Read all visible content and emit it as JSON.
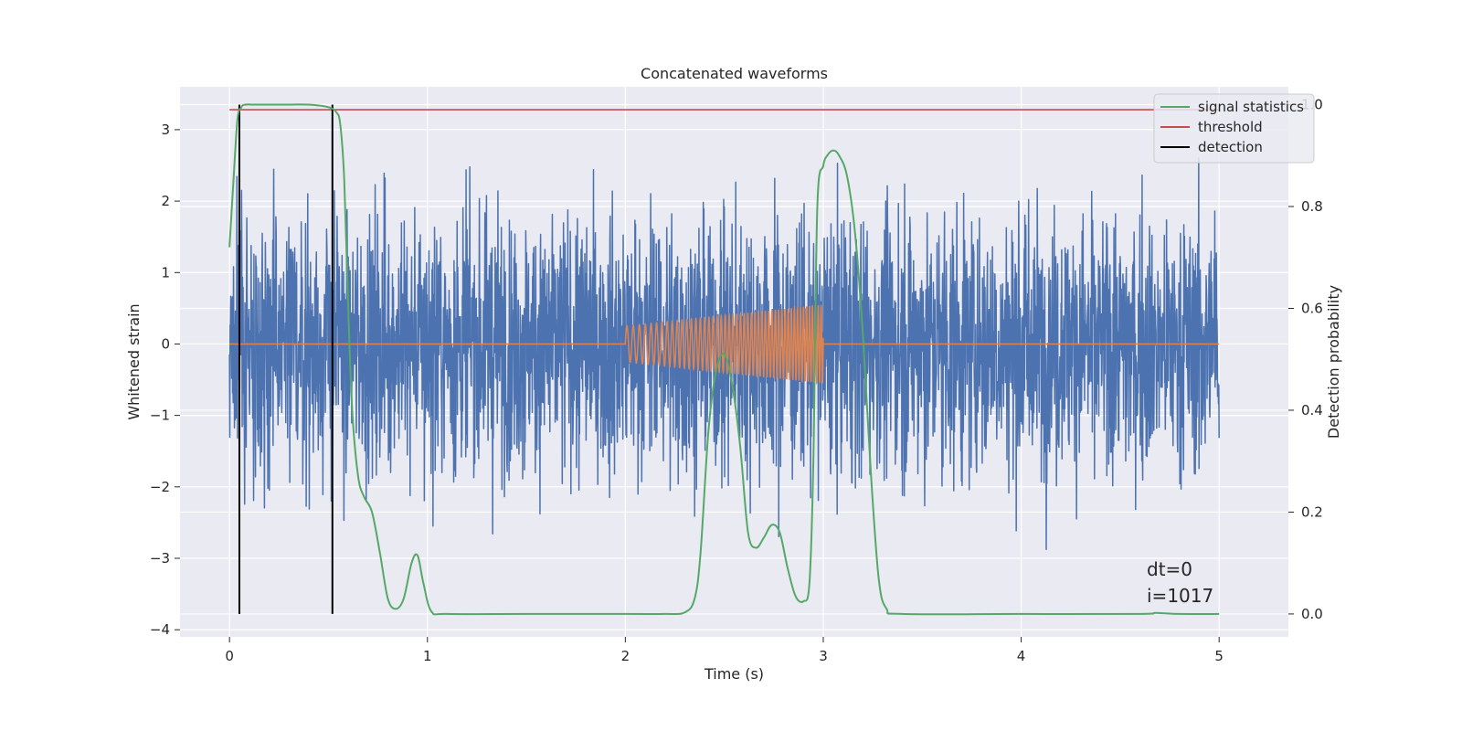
{
  "chart_data": {
    "type": "line",
    "title": "Concatenated waveforms",
    "xlabel": "Time (s)",
    "ylabel": "Whitened strain",
    "y2label": "Detection probability",
    "xlim": [
      -0.25,
      5.35
    ],
    "ylim": [
      -4.1,
      3.6
    ],
    "y2lim": [
      -0.045,
      1.035
    ],
    "x_ticks": [
      "0",
      "1",
      "2",
      "3",
      "4",
      "5"
    ],
    "x_tick_values": [
      0,
      1,
      2,
      3,
      4,
      5
    ],
    "y_ticks": [
      "3",
      "2",
      "1",
      "0",
      "−1",
      "−2",
      "−3",
      "−4"
    ],
    "y_tick_values": [
      3,
      2,
      1,
      0,
      -1,
      -2,
      -3,
      -4
    ],
    "y2_ticks": [
      "1.0",
      "0.8",
      "0.6",
      "0.4",
      "0.2",
      "0.0"
    ],
    "y2_tick_values": [
      1.0,
      0.8,
      0.6,
      0.4,
      0.2,
      0.0
    ],
    "grid": true,
    "legend_position": "top-right",
    "colors": {
      "background": "#eaeaf2",
      "grid": "#ffffff",
      "noise": "#4c72b0",
      "injection": "#dd8452",
      "statistic": "#55a868",
      "threshold": "#c44e52",
      "detection": "#000000"
    },
    "legend": [
      "signal statistics",
      "threshold",
      "detection"
    ],
    "noise_series": {
      "x_range": [
        0,
        5
      ],
      "approx_amplitude_sd": 0.9,
      "approx_extrema": [
        -3.7,
        3.4
      ]
    },
    "injection_series": {
      "x_range": [
        2.0,
        3.0
      ],
      "start_amplitude": 0.25,
      "end_amplitude": 0.55,
      "start_frequency_hz": 30,
      "end_frequency_hz": 70,
      "zero_elsewhere": true
    },
    "signal_statistics": {
      "x": [
        0,
        0.02,
        0.04,
        0.06,
        0.08,
        0.12,
        0.2,
        0.3,
        0.4,
        0.5,
        0.54,
        0.56,
        0.58,
        0.6,
        0.62,
        0.65,
        0.68,
        0.72,
        0.76,
        0.8,
        0.84,
        0.88,
        0.92,
        0.95,
        0.98,
        1.02,
        1.1,
        1.5,
        2.0,
        2.2,
        2.3,
        2.35,
        2.38,
        2.42,
        2.46,
        2.5,
        2.54,
        2.58,
        2.62,
        2.66,
        2.7,
        2.74,
        2.78,
        2.82,
        2.86,
        2.9,
        2.93,
        2.95,
        2.97,
        3.0,
        3.02,
        3.05,
        3.08,
        3.12,
        3.16,
        3.2,
        3.24,
        3.28,
        3.32,
        3.4,
        4.0,
        4.6,
        4.68,
        4.8,
        5.0
      ],
      "y": [
        0.72,
        0.85,
        0.97,
        0.995,
        1.0,
        1.0,
        1.0,
        1.0,
        1.0,
        0.995,
        0.985,
        0.96,
        0.85,
        0.6,
        0.4,
        0.27,
        0.23,
        0.2,
        0.12,
        0.03,
        0.01,
        0.03,
        0.1,
        0.115,
        0.06,
        0.005,
        0.0,
        0.0,
        0.0,
        0.0,
        0.003,
        0.03,
        0.12,
        0.36,
        0.48,
        0.51,
        0.45,
        0.33,
        0.16,
        0.13,
        0.15,
        0.175,
        0.16,
        0.09,
        0.035,
        0.025,
        0.06,
        0.3,
        0.8,
        0.88,
        0.9,
        0.91,
        0.9,
        0.86,
        0.75,
        0.55,
        0.28,
        0.07,
        0.01,
        0.0,
        0.0,
        0.0,
        0.002,
        0.0,
        0.0
      ]
    },
    "threshold_value": 0.99,
    "detections": [
      0.05,
      0.52
    ],
    "annotations": [
      "dt=0",
      "i=1017"
    ]
  }
}
